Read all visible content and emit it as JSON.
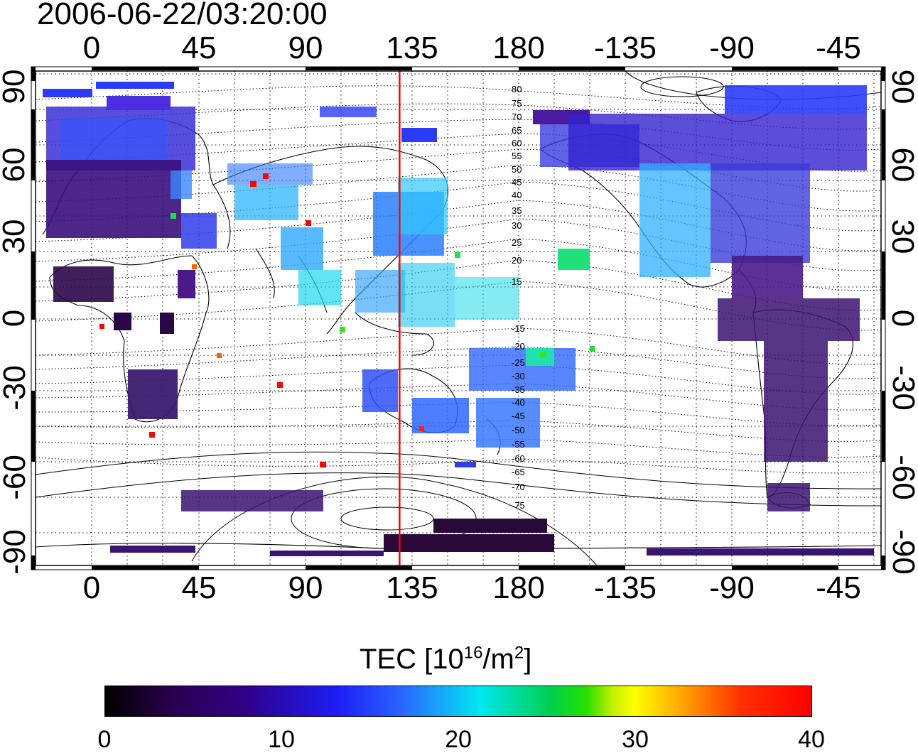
{
  "title": "2006-06-22/03:20:00",
  "map": {
    "lon_ticks": [
      "0",
      "45",
      "90",
      "135",
      "180",
      "-135",
      "-90",
      "-45"
    ],
    "lat_ticks": [
      "90",
      "60",
      "30",
      "0",
      "-30",
      "-60",
      "-90"
    ],
    "mlat_labels_north": [
      "80",
      "75",
      "70",
      "65",
      "60",
      "55",
      "50",
      "45",
      "40",
      "35",
      "30",
      "25",
      "20",
      "15"
    ],
    "mlat_labels_south": [
      "-15",
      "-20",
      "-25",
      "-30",
      "-35",
      "-40",
      "-45",
      "-50",
      "-55",
      "-60",
      "-65",
      "-70",
      "-75"
    ],
    "meridian_line_lon": 130,
    "meridian_line_color": "#ff0000"
  },
  "colorbar": {
    "label_main": "TEC  [10",
    "label_exp1": "16",
    "label_mid": "/m",
    "label_exp2": "2",
    "label_end": "]",
    "ticks": [
      "0",
      "10",
      "20",
      "30",
      "40"
    ],
    "min": 0,
    "max": 40
  }
}
